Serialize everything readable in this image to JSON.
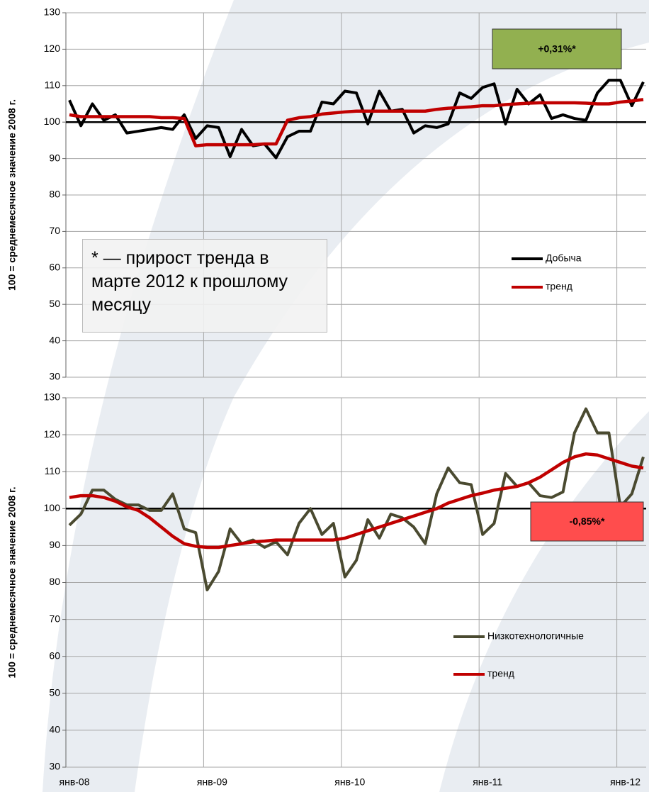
{
  "chart_data": [
    {
      "type": "line",
      "ylabel": "100 = среднемесячное значение 2008 г.",
      "ylim": [
        30,
        130
      ],
      "yticks": [
        30,
        40,
        50,
        60,
        70,
        80,
        90,
        100,
        110,
        120,
        130
      ],
      "grid": true,
      "hline": 100,
      "legend": "right",
      "badge": {
        "text": "+0,31%*",
        "color": "#92b050"
      },
      "annotation": "* — прирост тренда в марте 2012 к прошлому месяцу",
      "series": [
        {
          "name": "Добыча",
          "color": "#000000",
          "values": [
            106,
            99,
            105,
            100.5,
            102,
            97,
            97.5,
            98,
            98.5,
            98,
            102,
            95.5,
            99,
            98.5,
            90.5,
            98,
            93.5,
            94,
            90.2,
            96,
            97.5,
            97.5,
            105.5,
            105,
            108.5,
            108,
            99.5,
            108.5,
            103,
            103.5,
            97,
            99,
            98.5,
            99.5,
            108,
            106.5,
            109.5,
            110.5,
            99.5,
            109,
            105,
            107.5,
            101,
            102,
            101,
            100.5,
            108,
            111.5,
            111.5,
            104.5,
            111
          ]
        },
        {
          "name": "тренд",
          "color": "#c00000",
          "values": [
            102,
            101.5,
            101.5,
            101.5,
            101.5,
            101.5,
            101.5,
            101.5,
            101.2,
            101.2,
            101,
            93.5,
            93.8,
            93.8,
            93.8,
            93.8,
            93.8,
            94,
            94,
            100.5,
            101.2,
            101.5,
            102.2,
            102.5,
            102.8,
            103,
            103,
            103,
            103,
            103,
            103,
            103,
            103.5,
            103.8,
            104,
            104.2,
            104.5,
            104.5,
            104.8,
            105,
            105.2,
            105.3,
            105.3,
            105.3,
            105.3,
            105.2,
            105,
            105,
            105.5,
            105.8,
            106.2
          ]
        }
      ]
    },
    {
      "type": "line",
      "ylabel": "100 = среднемесячное значение 2008 г.",
      "categories": [
        "янв-08",
        null,
        null,
        null,
        null,
        null,
        null,
        null,
        null,
        null,
        null,
        null,
        "янв-09",
        null,
        null,
        null,
        null,
        null,
        null,
        null,
        null,
        null,
        null,
        null,
        "янв-10",
        null,
        null,
        null,
        null,
        null,
        null,
        null,
        null,
        null,
        null,
        null,
        "янв-11",
        null,
        null,
        null,
        null,
        null,
        null,
        null,
        null,
        null,
        null,
        null,
        "янв-12",
        null,
        null
      ],
      "ylim": [
        30,
        130
      ],
      "yticks": [
        30,
        40,
        50,
        60,
        70,
        80,
        90,
        100,
        110,
        120,
        130
      ],
      "grid": true,
      "hline": 100,
      "legend": "lower right",
      "badge": {
        "text": "-0,85%*",
        "color": "#ff4d4d"
      },
      "series": [
        {
          "name": "Низкотехнологичные",
          "color": "#4a4a30",
          "values": [
            95.5,
            98.5,
            105,
            105,
            102.5,
            101,
            101,
            99.5,
            99.5,
            104,
            94.5,
            93.5,
            78,
            83,
            94.5,
            90.5,
            91.5,
            89.5,
            91,
            87.5,
            96,
            100,
            93,
            96,
            81.5,
            86,
            97,
            92,
            98.5,
            97.5,
            95,
            90.5,
            104,
            111,
            107,
            106.5,
            93,
            96,
            109.5,
            106,
            107,
            103.5,
            103,
            104.5,
            120.5,
            127,
            120.5,
            120.5,
            100.5,
            104,
            114
          ]
        },
        {
          "name": "тренд",
          "color": "#c00000",
          "values": [
            103,
            103.5,
            103.5,
            103,
            102,
            100.5,
            99.5,
            97.5,
            95,
            92.5,
            90.5,
            89.8,
            89.5,
            89.5,
            90,
            90.5,
            91,
            91.2,
            91.5,
            91.5,
            91.5,
            91.5,
            91.5,
            91.5,
            92,
            93,
            94,
            95,
            96,
            97,
            98,
            99,
            100,
            101.5,
            102.5,
            103.5,
            104.2,
            105,
            105.5,
            106,
            107,
            108.5,
            110.5,
            112.5,
            114,
            114.8,
            114.5,
            113.5,
            112.5,
            111.5,
            111
          ]
        }
      ]
    }
  ]
}
